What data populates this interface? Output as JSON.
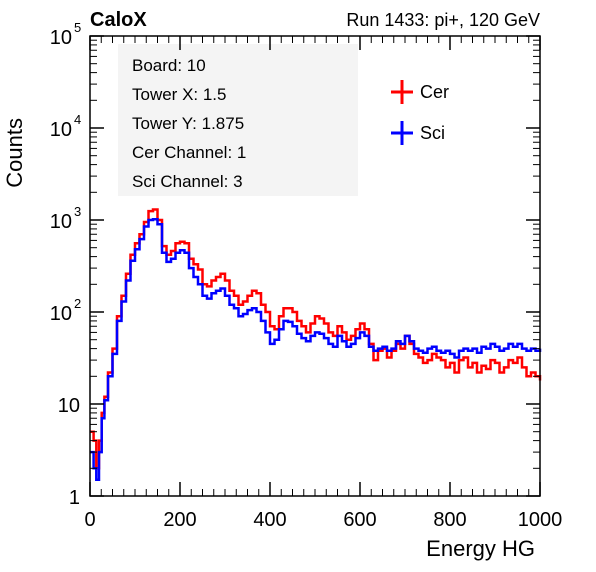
{
  "chart_data": {
    "type": "line",
    "title_left": "CaloX",
    "title_right": "Run 1433: pi+, 120 GeV",
    "xlabel": "Energy HG",
    "ylabel": "Counts",
    "xlim": [
      0,
      1000
    ],
    "ylim": [
      1,
      100000
    ],
    "yscale": "log",
    "x_ticks": [
      0,
      200,
      400,
      600,
      800,
      1000
    ],
    "y_ticks": [
      {
        "value": 1,
        "base": "1",
        "exp": ""
      },
      {
        "value": 10,
        "base": "10",
        "exp": ""
      },
      {
        "value": 100,
        "base": "10",
        "exp": "2"
      },
      {
        "value": 1000,
        "base": "10",
        "exp": "3"
      },
      {
        "value": 10000,
        "base": "10",
        "exp": "4"
      },
      {
        "value": 100000,
        "base": "10",
        "exp": "5"
      }
    ],
    "info_box": [
      "Board: 10",
      "Tower X: 1.5",
      "Tower Y: 1.875",
      "Cer Channel: 1",
      "Sci Channel: 3"
    ],
    "legend_position": "top-right",
    "series": [
      {
        "name": "Cer",
        "color": "#ff0000",
        "points": [
          [
            0,
            5
          ],
          [
            8,
            4
          ],
          [
            14,
            2
          ],
          [
            20,
            4
          ],
          [
            26,
            8
          ],
          [
            32,
            12
          ],
          [
            40,
            22
          ],
          [
            50,
            40
          ],
          [
            60,
            90
          ],
          [
            70,
            150
          ],
          [
            80,
            260
          ],
          [
            90,
            420
          ],
          [
            100,
            560
          ],
          [
            110,
            700
          ],
          [
            120,
            950
          ],
          [
            130,
            1250
          ],
          [
            140,
            1300
          ],
          [
            150,
            1000
          ],
          [
            160,
            520
          ],
          [
            170,
            420
          ],
          [
            180,
            460
          ],
          [
            190,
            560
          ],
          [
            200,
            580
          ],
          [
            210,
            560
          ],
          [
            220,
            380
          ],
          [
            230,
            330
          ],
          [
            240,
            290
          ],
          [
            250,
            200
          ],
          [
            260,
            190
          ],
          [
            270,
            220
          ],
          [
            280,
            240
          ],
          [
            290,
            260
          ],
          [
            300,
            220
          ],
          [
            310,
            170
          ],
          [
            320,
            150
          ],
          [
            330,
            120
          ],
          [
            340,
            130
          ],
          [
            350,
            150
          ],
          [
            360,
            170
          ],
          [
            370,
            160
          ],
          [
            380,
            120
          ],
          [
            390,
            100
          ],
          [
            400,
            70
          ],
          [
            410,
            65
          ],
          [
            420,
            90
          ],
          [
            430,
            110
          ],
          [
            440,
            110
          ],
          [
            450,
            100
          ],
          [
            460,
            80
          ],
          [
            470,
            70
          ],
          [
            480,
            60
          ],
          [
            490,
            75
          ],
          [
            500,
            90
          ],
          [
            510,
            85
          ],
          [
            520,
            75
          ],
          [
            530,
            60
          ],
          [
            540,
            55
          ],
          [
            550,
            70
          ],
          [
            560,
            60
          ],
          [
            570,
            50
          ],
          [
            580,
            55
          ],
          [
            590,
            65
          ],
          [
            600,
            75
          ],
          [
            610,
            65
          ],
          [
            620,
            45
          ],
          [
            630,
            30
          ],
          [
            640,
            38
          ],
          [
            650,
            40
          ],
          [
            660,
            32
          ],
          [
            670,
            38
          ],
          [
            680,
            45
          ],
          [
            690,
            40
          ],
          [
            700,
            55
          ],
          [
            710,
            45
          ],
          [
            720,
            35
          ],
          [
            730,
            32
          ],
          [
            740,
            28
          ],
          [
            750,
            30
          ],
          [
            760,
            35
          ],
          [
            770,
            32
          ],
          [
            780,
            30
          ],
          [
            790,
            25
          ],
          [
            800,
            28
          ],
          [
            810,
            22
          ],
          [
            820,
            30
          ],
          [
            830,
            32
          ],
          [
            840,
            25
          ],
          [
            850,
            28
          ],
          [
            860,
            22
          ],
          [
            870,
            26
          ],
          [
            880,
            24
          ],
          [
            890,
            30
          ],
          [
            900,
            28
          ],
          [
            910,
            22
          ],
          [
            920,
            25
          ],
          [
            930,
            30
          ],
          [
            940,
            28
          ],
          [
            950,
            32
          ],
          [
            960,
            25
          ],
          [
            970,
            20
          ],
          [
            980,
            22
          ],
          [
            990,
            20
          ],
          [
            1000,
            18
          ]
        ]
      },
      {
        "name": "Sci",
        "color": "#0000ff",
        "points": [
          [
            0,
            3
          ],
          [
            8,
            2
          ],
          [
            14,
            1.5
          ],
          [
            20,
            3
          ],
          [
            26,
            7
          ],
          [
            32,
            11
          ],
          [
            40,
            20
          ],
          [
            50,
            35
          ],
          [
            60,
            80
          ],
          [
            70,
            130
          ],
          [
            80,
            220
          ],
          [
            90,
            360
          ],
          [
            100,
            480
          ],
          [
            110,
            620
          ],
          [
            120,
            850
          ],
          [
            130,
            1000
          ],
          [
            140,
            1020
          ],
          [
            150,
            900
          ],
          [
            160,
            440
          ],
          [
            170,
            350
          ],
          [
            180,
            380
          ],
          [
            190,
            440
          ],
          [
            200,
            470
          ],
          [
            210,
            440
          ],
          [
            220,
            300
          ],
          [
            230,
            240
          ],
          [
            240,
            200
          ],
          [
            250,
            150
          ],
          [
            260,
            140
          ],
          [
            270,
            160
          ],
          [
            280,
            170
          ],
          [
            290,
            180
          ],
          [
            300,
            150
          ],
          [
            310,
            120
          ],
          [
            320,
            110
          ],
          [
            330,
            90
          ],
          [
            340,
            95
          ],
          [
            350,
            105
          ],
          [
            360,
            110
          ],
          [
            370,
            100
          ],
          [
            380,
            80
          ],
          [
            390,
            60
          ],
          [
            400,
            45
          ],
          [
            410,
            50
          ],
          [
            420,
            65
          ],
          [
            430,
            80
          ],
          [
            440,
            78
          ],
          [
            450,
            70
          ],
          [
            460,
            58
          ],
          [
            470,
            52
          ],
          [
            480,
            48
          ],
          [
            490,
            55
          ],
          [
            500,
            60
          ],
          [
            510,
            58
          ],
          [
            520,
            52
          ],
          [
            530,
            45
          ],
          [
            540,
            42
          ],
          [
            550,
            55
          ],
          [
            560,
            48
          ],
          [
            570,
            42
          ],
          [
            580,
            45
          ],
          [
            590,
            52
          ],
          [
            600,
            60
          ],
          [
            610,
            55
          ],
          [
            620,
            42
          ],
          [
            630,
            38
          ],
          [
            640,
            40
          ],
          [
            650,
            42
          ],
          [
            660,
            38
          ],
          [
            670,
            40
          ],
          [
            680,
            48
          ],
          [
            690,
            45
          ],
          [
            700,
            55
          ],
          [
            710,
            48
          ],
          [
            720,
            40
          ],
          [
            730,
            38
          ],
          [
            740,
            36
          ],
          [
            750,
            40
          ],
          [
            760,
            42
          ],
          [
            770,
            38
          ],
          [
            780,
            36
          ],
          [
            790,
            38
          ],
          [
            800,
            35
          ],
          [
            810,
            32
          ],
          [
            820,
            38
          ],
          [
            830,
            40
          ],
          [
            840,
            38
          ],
          [
            850,
            40
          ],
          [
            860,
            36
          ],
          [
            870,
            42
          ],
          [
            880,
            40
          ],
          [
            890,
            45
          ],
          [
            900,
            42
          ],
          [
            910,
            38
          ],
          [
            920,
            40
          ],
          [
            930,
            45
          ],
          [
            940,
            42
          ],
          [
            950,
            45
          ],
          [
            960,
            40
          ],
          [
            970,
            38
          ],
          [
            980,
            40
          ],
          [
            990,
            38
          ],
          [
            1000,
            40
          ]
        ]
      }
    ]
  }
}
